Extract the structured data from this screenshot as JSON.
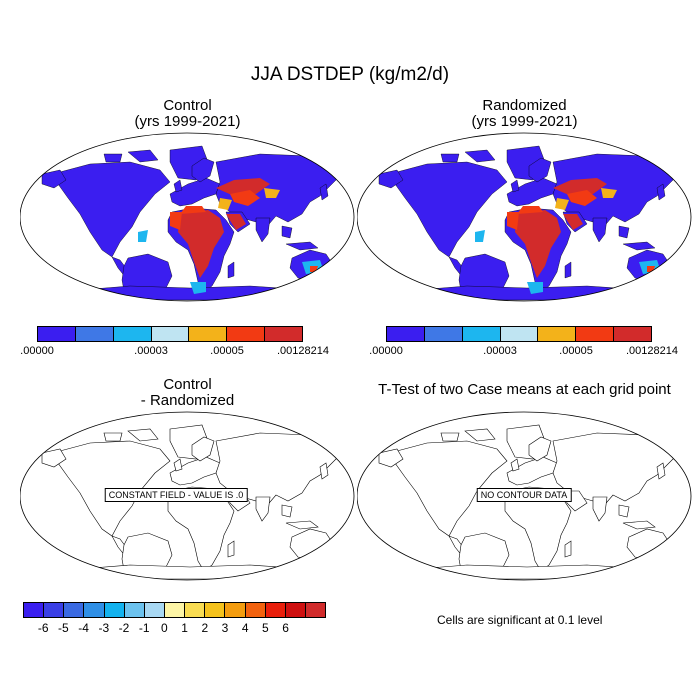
{
  "figure": {
    "title": "JJA DSTDEP (kg/m2/d)"
  },
  "panels": {
    "control": {
      "title_line1": "Control",
      "title_line2": "(yrs 1999-2021)"
    },
    "randomized": {
      "title_line1": "Randomized",
      "title_line2": "(yrs 1999-2021)"
    },
    "difference": {
      "title_line1": "Control",
      "title_line2": "- Randomized",
      "message": "CONSTANT FIELD - VALUE IS .0"
    },
    "ttest": {
      "title": "T-Test of two Case means at each grid point",
      "message": "NO CONTOUR DATA"
    }
  },
  "colorbar_top": {
    "colors": [
      "#3b1ef0",
      "#3f78e6",
      "#1db6ef",
      "#bfe4f2",
      "#f3b21a",
      "#f23a13",
      "#d22b2b"
    ],
    "labels": [
      ".00000",
      ".00003",
      ".00005",
      ".00128214"
    ]
  },
  "colorbar_bottom": {
    "colors": [
      "#3a1ff0",
      "#3a3fe6",
      "#3a6ae2",
      "#2f8fe6",
      "#13b2ee",
      "#6cc2ee",
      "#a8d8f3",
      "#fdf5a6",
      "#f9dc52",
      "#f5c21c",
      "#f39c0f",
      "#f2620f",
      "#e91f0c",
      "#cf1010",
      "#d12b2b"
    ],
    "labels": [
      "-6",
      "-5",
      "-4",
      "-3",
      "-2",
      "-1",
      "0",
      "1",
      "2",
      "3",
      "4",
      "5",
      "6"
    ]
  },
  "footnote": "Cells are significant at 0.1 level"
}
